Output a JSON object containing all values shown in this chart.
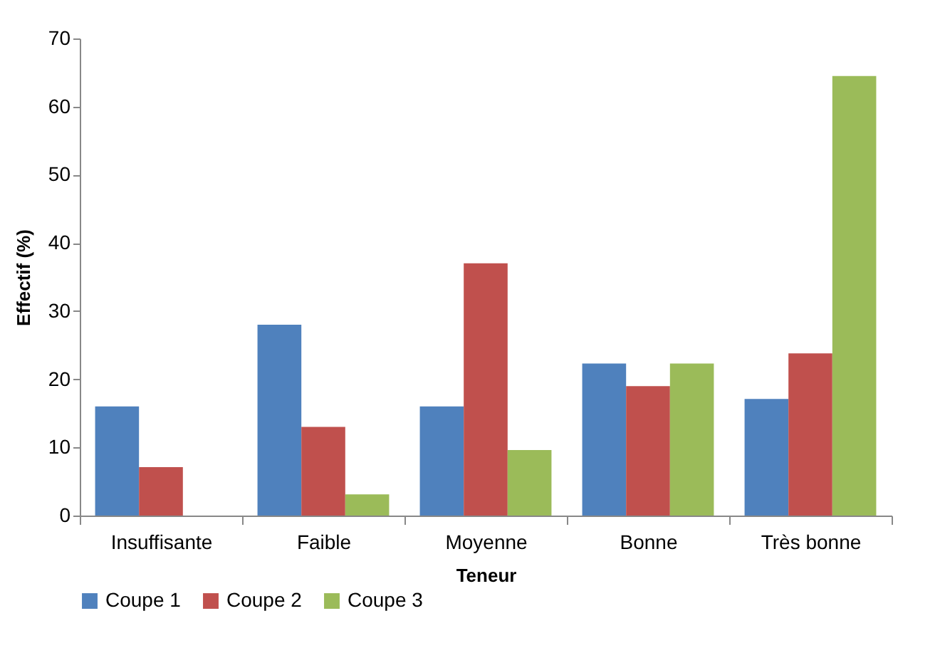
{
  "chart_data": {
    "type": "bar",
    "xlabel": "Teneur",
    "ylabel": "Effectif (%)",
    "categories": [
      "Insuffisante",
      "Faible",
      "Moyenne",
      "Bonne",
      "Très bonne"
    ],
    "series": [
      {
        "name": "Coupe 1",
        "color": "#4f81bd",
        "values": [
          16,
          28,
          16,
          22.3,
          17.1
        ]
      },
      {
        "name": "Coupe 2",
        "color": "#c0504d",
        "values": [
          7.1,
          13,
          37,
          19,
          23.8
        ]
      },
      {
        "name": "Coupe 3",
        "color": "#9bbb59",
        "values": [
          null,
          3.1,
          9.6,
          22.3,
          64.5
        ]
      }
    ],
    "ylim": [
      0,
      70
    ],
    "yticks": [
      0,
      10,
      20,
      30,
      40,
      50,
      60,
      70
    ],
    "grid": false,
    "legend": "bottom"
  }
}
